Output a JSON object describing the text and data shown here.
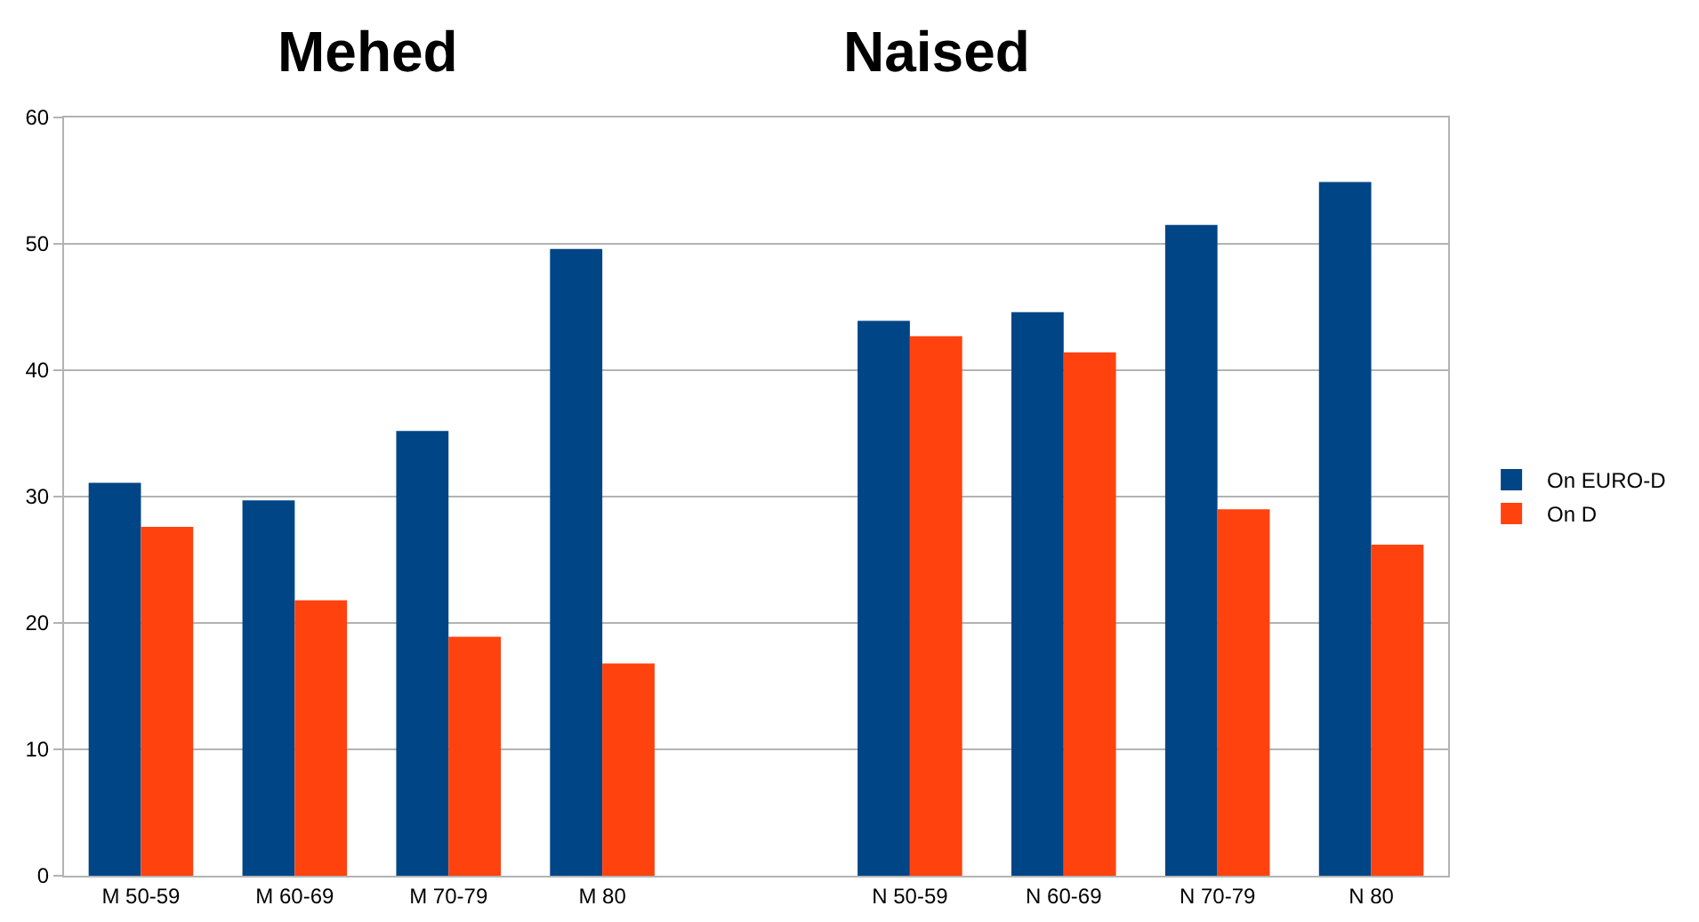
{
  "chart_data": {
    "type": "bar",
    "annotations": [
      "Mehed",
      "Naised"
    ],
    "categories": [
      "M 50-59",
      "M 60-69",
      "M 70-79",
      "M 80",
      null,
      "N 50-59",
      "N 60-69",
      "N 70-79",
      "N 80"
    ],
    "series": [
      {
        "name": "On EURO-D",
        "color": "#004586",
        "values": [
          31.1,
          29.7,
          35.2,
          49.6,
          null,
          43.9,
          44.6,
          51.5,
          54.9
        ]
      },
      {
        "name": "On D",
        "color": "#ff420e",
        "values": [
          27.6,
          21.8,
          18.9,
          16.8,
          null,
          42.7,
          41.4,
          29.0,
          26.2
        ]
      }
    ],
    "ylim": [
      0,
      60
    ],
    "yticks": [
      0,
      10,
      20,
      30,
      40,
      50,
      60
    ],
    "grid": "y",
    "legend": "right"
  }
}
